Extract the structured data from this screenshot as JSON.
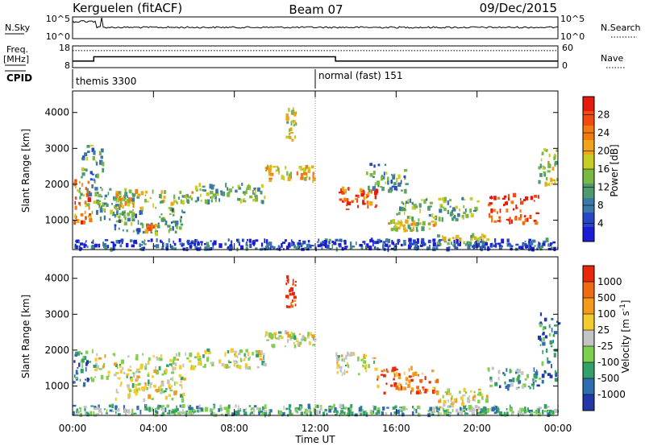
{
  "header": {
    "station": "Kerguelen (fitACF)",
    "beam": "Beam 07",
    "date": "09/Dec/2015"
  },
  "noise_panel": {
    "left_label": "N.Sky",
    "right_label": "N.Search",
    "left_ticks": [
      "10^5",
      "10^0"
    ],
    "right_ticks": [
      "10^5",
      "10^0"
    ]
  },
  "freq_panel": {
    "left_label_line1": "Freq.",
    "left_label_line2": "[MHz]",
    "right_label": "Nave",
    "left_ticks": [
      "18",
      "8"
    ],
    "right_ticks": [
      "60",
      "0"
    ],
    "freq_ylim": [
      8,
      18
    ],
    "nave_ylim": [
      0,
      60
    ],
    "freq_steps": [
      [
        0,
        11
      ],
      [
        1.05,
        13
      ],
      [
        13.0,
        11
      ],
      [
        24,
        11
      ]
    ],
    "nave_level": 47
  },
  "cpid": {
    "label": "CPID",
    "modes": [
      {
        "name": "themis 3300",
        "start_hour": 0
      },
      {
        "name": "normal (fast) 151",
        "start_hour": 12
      }
    ]
  },
  "chart_data": [
    {
      "type": "heatmap",
      "name": "power",
      "ylabel": "Slant Range [km]",
      "xlabel": "Time UT",
      "xlim_hours": [
        0,
        24
      ],
      "ylim": [
        180,
        4600
      ],
      "x_tick_labels": [
        "00:00",
        "04:00",
        "08:00",
        "12:00",
        "16:00",
        "20:00",
        "00:00"
      ],
      "y_ticks": [
        1000,
        2000,
        3000,
        4000
      ],
      "colorbar": {
        "label": "Power [dB]",
        "ticks": [
          "28",
          "24",
          "20",
          "16",
          "12",
          "8",
          "4"
        ],
        "range": [
          0,
          30
        ],
        "colors": [
          "#1c1cd8",
          "#2647c4",
          "#3b78a8",
          "#4f9a6c",
          "#7ab844",
          "#c8cc24",
          "#f0a418",
          "#f27a10",
          "#ef4a10",
          "#e41a0c"
        ]
      },
      "echo_regions": [
        {
          "t0": 0.0,
          "t1": 0.9,
          "r0": 900,
          "r1": 2100,
          "level": 0.75
        },
        {
          "t0": 0.3,
          "t1": 1.5,
          "r0": 1200,
          "r1": 3100,
          "level": 0.35
        },
        {
          "t0": 1.0,
          "t1": 3.0,
          "r0": 1000,
          "r1": 1900,
          "level": 0.4
        },
        {
          "t0": 2.0,
          "t1": 6.0,
          "r0": 1300,
          "r1": 1800,
          "level": 0.55
        },
        {
          "t0": 2.0,
          "t1": 5.5,
          "r0": 650,
          "r1": 1300,
          "level": 0.35
        },
        {
          "t0": 3.5,
          "t1": 4.2,
          "r0": 600,
          "r1": 900,
          "level": 0.7
        },
        {
          "t0": 6.0,
          "t1": 9.5,
          "r0": 1500,
          "r1": 2000,
          "level": 0.4
        },
        {
          "t0": 9.5,
          "t1": 11.9,
          "r0": 2100,
          "r1": 2500,
          "level": 0.6
        },
        {
          "t0": 10.5,
          "t1": 11.0,
          "r0": 3200,
          "r1": 4100,
          "level": 0.5
        },
        {
          "t0": 13.0,
          "t1": 15.0,
          "r0": 1300,
          "r1": 1900,
          "level": 0.85
        },
        {
          "t0": 14.5,
          "t1": 16.5,
          "r0": 1800,
          "r1": 2600,
          "level": 0.35
        },
        {
          "t0": 15.5,
          "t1": 18.0,
          "r0": 700,
          "r1": 1000,
          "level": 0.55
        },
        {
          "t0": 16.0,
          "t1": 20.0,
          "r0": 1000,
          "r1": 1600,
          "level": 0.4
        },
        {
          "t0": 18.0,
          "t1": 20.5,
          "r0": 300,
          "r1": 600,
          "level": 0.5
        },
        {
          "t0": 20.5,
          "t1": 23.0,
          "r0": 900,
          "r1": 1700,
          "level": 0.9
        },
        {
          "t0": 23.0,
          "t1": 24.0,
          "r0": 1900,
          "r1": 3000,
          "level": 0.55
        },
        {
          "t0": 0.0,
          "t1": 24.0,
          "r0": 180,
          "r1": 450,
          "level": 0.15
        }
      ]
    },
    {
      "type": "heatmap",
      "name": "velocity",
      "ylabel": "Slant Range [km]",
      "xlabel": "Time UT",
      "xlim_hours": [
        0,
        24
      ],
      "ylim": [
        180,
        4600
      ],
      "x_tick_labels": [
        "00:00",
        "04:00",
        "08:00",
        "12:00",
        "16:00",
        "20:00",
        "00:00"
      ],
      "y_ticks": [
        1000,
        2000,
        3000,
        4000
      ],
      "colorbar": {
        "label": "Velocity [m s^-1]",
        "ticks": [
          "1000",
          "500",
          "100",
          "25",
          "-25",
          "-100",
          "-500",
          "-1000"
        ],
        "colors": [
          "#2238a8",
          "#2f6cb0",
          "#33a06a",
          "#7cd04c",
          "#c4c4c4",
          "#f2cc2c",
          "#f39a1c",
          "#f06a14",
          "#e8280c"
        ]
      },
      "echo_regions": [
        {
          "t0": 0.0,
          "t1": 1.0,
          "r0": 1000,
          "r1": 2000,
          "level": 0.25
        },
        {
          "t0": 1.0,
          "t1": 6.0,
          "r0": 1200,
          "r1": 1900,
          "level": 0.5
        },
        {
          "t0": 2.0,
          "t1": 5.5,
          "r0": 600,
          "r1": 1200,
          "level": 0.5
        },
        {
          "t0": 6.0,
          "t1": 9.5,
          "r0": 1500,
          "r1": 2000,
          "level": 0.5
        },
        {
          "t0": 9.5,
          "t1": 11.9,
          "r0": 2100,
          "r1": 2500,
          "level": 0.5
        },
        {
          "t0": 10.5,
          "t1": 11.0,
          "r0": 3200,
          "r1": 4100,
          "level": 0.95
        },
        {
          "t0": 13.0,
          "t1": 15.0,
          "r0": 1300,
          "r1": 1900,
          "level": 0.5
        },
        {
          "t0": 15.0,
          "t1": 18.0,
          "r0": 800,
          "r1": 1500,
          "level": 0.8
        },
        {
          "t0": 18.0,
          "t1": 20.5,
          "r0": 300,
          "r1": 900,
          "level": 0.55
        },
        {
          "t0": 20.5,
          "t1": 23.0,
          "r0": 900,
          "r1": 1500,
          "level": 0.3
        },
        {
          "t0": 23.0,
          "t1": 24.0,
          "r0": 1100,
          "r1": 3000,
          "level": 0.2
        },
        {
          "t0": 0.0,
          "t1": 24.0,
          "r0": 180,
          "r1": 450,
          "level": 0.35
        }
      ]
    }
  ]
}
